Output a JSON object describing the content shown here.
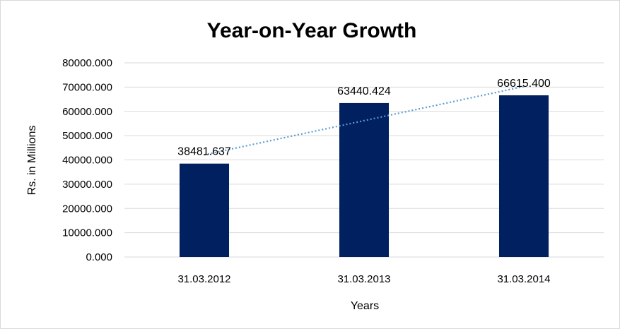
{
  "chart_data": {
    "type": "bar",
    "title": "Year-on-Year Growth",
    "xlabel": "Years",
    "ylabel": "Rs. in Millions",
    "categories": [
      "31.03.2012",
      "31.03.2013",
      "31.03.2014"
    ],
    "values": [
      38481.637,
      63440.424,
      66615.4
    ],
    "data_labels": [
      "38481.637",
      "63440.424",
      "66615.400"
    ],
    "ylim": [
      0,
      80000
    ],
    "y_ticks": [
      0,
      10000,
      20000,
      30000,
      40000,
      50000,
      60000,
      70000,
      80000
    ],
    "y_tick_labels": [
      "0.000",
      "10000.000",
      "20000.000",
      "30000.000",
      "40000.000",
      "50000.000",
      "60000.000",
      "70000.000",
      "80000.000"
    ],
    "grid": true,
    "legend": "none",
    "trendline": "linear",
    "colors": {
      "bar": "#002060",
      "trendline": "#5b9bd5",
      "grid": "#d9d9d9"
    }
  }
}
